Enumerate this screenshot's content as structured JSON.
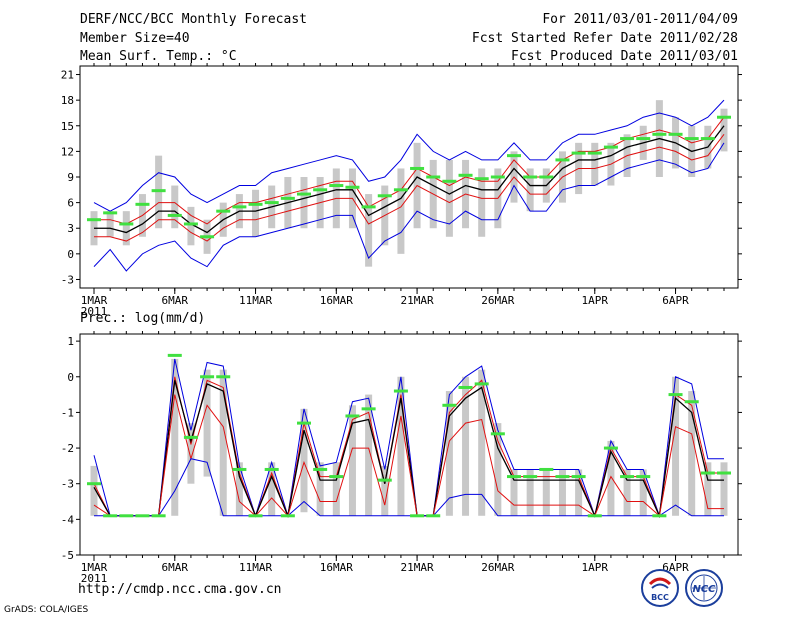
{
  "header": {
    "title": "DERF/NCC/BCC Monthly Forecast",
    "member_size": "Member Size=40",
    "variable": "Mean Surf. Temp.: °C",
    "period": "For 2011/03/01-2011/04/09",
    "started": "Fcst Started Refer Date 2011/02/28",
    "produced": "Fcst Produced Date 2011/03/01"
  },
  "footer": {
    "url": "http://cmdp.ncc.cma.gov.cn",
    "grads": "GrADS: COLA/IGES",
    "logo_bcc": "BCC",
    "logo_ncc": "NCC"
  },
  "colors": {
    "mean": "#000000",
    "inner": "#e01010",
    "outer": "#0000e0",
    "obs": "#40e040",
    "box": "#c8c8c8",
    "axis": "#000000"
  },
  "chart_data": [
    {
      "type": "line",
      "title": "Mean Surf. Temp.: °C",
      "ylim": [
        -4,
        22
      ],
      "yticks": [
        -3,
        0,
        3,
        6,
        9,
        12,
        15,
        18,
        21
      ],
      "x_tick_labels": [
        "1MAR",
        "6MAR",
        "11MAR",
        "16MAR",
        "21MAR",
        "26MAR",
        "1APR",
        "6APR"
      ],
      "x_tick_days": [
        1,
        6,
        11,
        16,
        21,
        26,
        32,
        37
      ],
      "x_sublabel": "2011",
      "days": [
        1,
        2,
        3,
        4,
        5,
        6,
        7,
        8,
        9,
        10,
        11,
        12,
        13,
        14,
        15,
        16,
        17,
        18,
        19,
        20,
        21,
        22,
        23,
        24,
        25,
        26,
        27,
        28,
        29,
        30,
        31,
        32,
        33,
        34,
        35,
        36,
        37,
        38,
        39,
        40
      ],
      "series": [
        {
          "name": "max",
          "values": [
            6,
            5,
            6,
            8,
            9.5,
            9,
            7,
            6,
            7,
            8,
            8,
            9.5,
            10,
            10.5,
            11,
            11.5,
            11,
            8.5,
            9,
            11,
            14,
            12,
            11,
            12,
            11,
            11,
            13,
            11,
            11,
            13,
            14,
            14,
            14.5,
            15,
            16,
            16.5,
            16,
            15,
            16,
            18
          ]
        },
        {
          "name": "upper",
          "values": [
            4,
            4,
            3.5,
            4.5,
            6,
            6,
            4.5,
            3.5,
            5,
            6,
            6,
            6.5,
            7,
            7.5,
            8,
            8.5,
            8.5,
            5.5,
            6.5,
            7.5,
            10,
            9,
            8,
            9,
            8.5,
            8.5,
            11,
            9,
            9,
            11,
            12,
            12,
            12.5,
            13.5,
            14,
            14.5,
            14,
            13,
            13.5,
            16
          ]
        },
        {
          "name": "mean",
          "values": [
            3,
            3,
            2.5,
            3.5,
            5,
            5,
            3.5,
            2.5,
            4,
            5,
            5,
            5.5,
            6,
            6.5,
            7,
            7.5,
            7.5,
            4.5,
            5.5,
            6.5,
            9,
            8,
            7,
            8,
            7.5,
            7.5,
            10,
            8,
            8,
            10,
            11,
            11,
            11.5,
            12.5,
            13,
            13.5,
            13,
            12,
            12.5,
            15
          ]
        },
        {
          "name": "lower",
          "values": [
            2,
            2,
            1.5,
            2.5,
            4,
            4,
            2.5,
            1.5,
            3,
            4,
            4,
            4.5,
            5,
            5.5,
            6,
            6.5,
            6.5,
            3.5,
            4.5,
            5.5,
            8,
            7,
            6,
            7,
            6.5,
            6.5,
            9,
            7,
            7,
            9,
            10,
            10,
            10.5,
            11.5,
            12,
            12.5,
            12,
            11,
            11.5,
            14
          ]
        },
        {
          "name": "min",
          "values": [
            -1.5,
            0.5,
            -2,
            0,
            1,
            1.5,
            -0.5,
            -1.5,
            1,
            2,
            2,
            2.5,
            3,
            3.5,
            4,
            4.5,
            4.5,
            -0.5,
            1.5,
            2.5,
            5,
            4,
            3.5,
            5,
            4,
            4,
            8,
            5,
            5,
            7.5,
            8,
            8,
            9,
            10,
            10.5,
            11,
            10.5,
            9.5,
            10,
            13
          ]
        },
        {
          "name": "observed",
          "values": [
            4,
            4.8,
            3.5,
            5.8,
            7.4,
            4.5,
            3.5,
            2,
            5,
            5.5,
            5.8,
            6,
            6.5,
            7,
            7.5,
            8,
            7.8,
            5.5,
            6.8,
            7.5,
            10,
            9,
            8.5,
            9.2,
            8.8,
            9,
            11.5,
            9,
            9,
            11,
            11.8,
            11.8,
            12.5,
            13.5,
            13.5,
            14,
            14,
            13.5,
            13.5,
            16
          ]
        }
      ],
      "box_low": [
        1,
        2,
        1,
        2,
        3,
        3,
        1,
        0,
        2,
        3,
        2,
        3,
        3,
        3,
        3,
        3,
        3,
        -1.5,
        1,
        0,
        3,
        3,
        2,
        3,
        2,
        3,
        6,
        5,
        6,
        6,
        7,
        8,
        8,
        9,
        11,
        9,
        10,
        9,
        10,
        12
      ],
      "box_high": [
        5,
        5,
        5,
        7,
        11.5,
        8,
        5.5,
        4,
        6,
        7,
        7.5,
        8,
        9,
        9,
        9,
        10,
        10,
        7,
        8,
        10,
        13,
        11,
        11,
        11,
        10,
        10,
        12,
        10,
        10,
        12,
        13,
        13,
        13,
        14,
        15,
        18,
        16,
        15,
        15,
        17
      ]
    },
    {
      "type": "line",
      "title": "Prec.: log(mm/d)",
      "ylim": [
        -5,
        1.2
      ],
      "yticks": [
        -5,
        -4,
        -3,
        -2,
        -1,
        0,
        1
      ],
      "x_tick_labels": [
        "1MAR",
        "6MAR",
        "11MAR",
        "16MAR",
        "21MAR",
        "26MAR",
        "1APR",
        "6APR"
      ],
      "x_tick_days": [
        1,
        6,
        11,
        16,
        21,
        26,
        32,
        37
      ],
      "x_sublabel": "2011",
      "days": [
        1,
        2,
        3,
        4,
        5,
        6,
        7,
        8,
        9,
        10,
        11,
        12,
        13,
        14,
        15,
        16,
        17,
        18,
        19,
        20,
        21,
        22,
        23,
        24,
        25,
        26,
        27,
        28,
        29,
        30,
        31,
        32,
        33,
        34,
        35,
        36,
        37,
        38,
        39,
        40
      ],
      "series": [
        {
          "name": "max",
          "values": [
            -2.2,
            -3.9,
            -3.9,
            -3.9,
            -3.9,
            0.5,
            -1.5,
            0.4,
            0.3,
            -2.5,
            -3.9,
            -2.4,
            -3.9,
            -0.9,
            -2.5,
            -2.4,
            -0.7,
            -0.6,
            -2.6,
            0,
            -3.9,
            -3.9,
            -0.5,
            0,
            0.3,
            -1.5,
            -2.6,
            -2.6,
            -2.6,
            -2.6,
            -2.6,
            -3.9,
            -1.8,
            -2.6,
            -2.6,
            -3.9,
            0,
            -0.2,
            -2.3,
            -2.3
          ]
        },
        {
          "name": "upper",
          "values": [
            -3,
            -3.9,
            -3.9,
            -3.9,
            -3.9,
            0,
            -1.9,
            -0.1,
            -0.3,
            -2.7,
            -3.9,
            -2.7,
            -3.9,
            -1.3,
            -2.8,
            -2.8,
            -1.2,
            -1,
            -3,
            -0.5,
            -3.9,
            -3.9,
            -1,
            -0.5,
            -0.1,
            -1.8,
            -2.8,
            -2.8,
            -2.8,
            -2.8,
            -2.8,
            -3.9,
            -2,
            -2.8,
            -2.8,
            -3.9,
            -0.5,
            -0.8,
            -2.7,
            -2.7
          ]
        },
        {
          "name": "mean",
          "values": [
            -3.1,
            -3.9,
            -3.9,
            -3.9,
            -3.9,
            -0.1,
            -1.8,
            -0.2,
            -0.4,
            -2.8,
            -3.9,
            -2.8,
            -3.9,
            -1.5,
            -2.9,
            -2.9,
            -1.3,
            -1.2,
            -3,
            -0.6,
            -3.9,
            -3.9,
            -1.1,
            -0.6,
            -0.3,
            -2,
            -2.9,
            -2.9,
            -2.9,
            -2.9,
            -2.9,
            -3.9,
            -2.1,
            -2.9,
            -2.9,
            -3.9,
            -0.6,
            -1,
            -2.9,
            -2.9
          ]
        },
        {
          "name": "lower",
          "values": [
            -3.6,
            -3.9,
            -3.9,
            -3.9,
            -3.9,
            -0.5,
            -2.3,
            -0.8,
            -1.4,
            -3.5,
            -3.9,
            -3.4,
            -3.9,
            -2.4,
            -3.5,
            -3.5,
            -2,
            -2,
            -3.6,
            -1.1,
            -3.9,
            -3.9,
            -1.8,
            -1.3,
            -1.2,
            -3.2,
            -3.6,
            -3.6,
            -3.6,
            -3.6,
            -3.6,
            -3.9,
            -2.8,
            -3.5,
            -3.5,
            -3.9,
            -1.4,
            -1.6,
            -3.7,
            -3.7
          ]
        },
        {
          "name": "min",
          "values": [
            -3.9,
            -3.9,
            -3.9,
            -3.9,
            -3.9,
            -3.2,
            -2.3,
            -2.4,
            -3.9,
            -3.9,
            -3.9,
            -3.9,
            -3.9,
            -3.5,
            -3.9,
            -3.9,
            -3.9,
            -3.9,
            -3.9,
            -3.9,
            -3.9,
            -3.9,
            -3.4,
            -3.3,
            -3.3,
            -3.9,
            -3.9,
            -3.9,
            -3.9,
            -3.9,
            -3.9,
            -3.9,
            -3.9,
            -3.9,
            -3.9,
            -3.9,
            -3.6,
            -3.9,
            -3.9,
            -3.9
          ]
        },
        {
          "name": "observed",
          "values": [
            -3,
            -3.9,
            -3.9,
            -3.9,
            -3.9,
            0.6,
            -1.7,
            0,
            0,
            -2.6,
            -3.9,
            -2.6,
            -3.9,
            -1.3,
            -2.6,
            -2.8,
            -1.1,
            -0.9,
            -2.9,
            -0.4,
            -3.9,
            -3.9,
            -0.8,
            -0.3,
            -0.2,
            -1.6,
            -2.8,
            -2.8,
            -2.6,
            -2.8,
            -2.8,
            -3.9,
            -2,
            -2.8,
            -2.8,
            -3.9,
            -0.5,
            -0.7,
            -2.7,
            -2.7
          ]
        }
      ],
      "box_low": [
        -3.9,
        -3.9,
        -3.9,
        -3.9,
        -3.9,
        -3.9,
        -3,
        -2.8,
        -3.9,
        -3.9,
        -3.9,
        -3.9,
        -3.9,
        -3.8,
        -3.9,
        -3.9,
        -3.9,
        -3.9,
        -3.9,
        -3.9,
        -3.9,
        -3.9,
        -3.9,
        -3.9,
        -3.9,
        -3.9,
        -3.9,
        -3.9,
        -3.9,
        -3.9,
        -3.9,
        -3.9,
        -3.9,
        -3.9,
        -3.9,
        -3.9,
        -3.9,
        -3.9,
        -3.9,
        -3.9
      ],
      "box_high": [
        -2.5,
        -3.9,
        -3.9,
        -3.9,
        -3.9,
        0.5,
        -1.3,
        0.2,
        0.2,
        -2.4,
        -3.9,
        -2.4,
        -3.9,
        -0.9,
        -2.4,
        -2.4,
        -0.8,
        -0.5,
        -2.5,
        0,
        -3.9,
        -3.9,
        -0.4,
        0,
        0.2,
        -1.3,
        -2.6,
        -2.6,
        -2.6,
        -2.6,
        -2.6,
        -3.9,
        -1.8,
        -2.6,
        -2.6,
        -3.9,
        0,
        -0.4,
        -2.4,
        -2.4
      ]
    }
  ]
}
